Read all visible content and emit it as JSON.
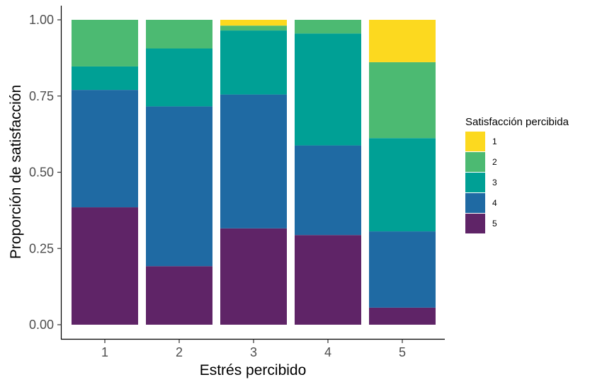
{
  "chart_data": {
    "type": "bar",
    "stacked": true,
    "categories": [
      "1",
      "2",
      "3",
      "4",
      "5"
    ],
    "xlabel": "Estrés percibido",
    "ylabel": "Proporción de satisfacción",
    "ylim": [
      0,
      1
    ],
    "yticks": [
      "0.00",
      "0.25",
      "0.50",
      "0.75",
      "1.00"
    ],
    "grid": false,
    "legend": {
      "title": "Satisfacción percibida",
      "position": "right"
    },
    "series": [
      {
        "name": "5",
        "color": "#5f2467",
        "values": [
          0.385,
          0.192,
          0.316,
          0.294,
          0.056
        ]
      },
      {
        "name": "4",
        "color": "#1f6aa3",
        "values": [
          0.385,
          0.524,
          0.439,
          0.294,
          0.25
        ]
      },
      {
        "name": "3",
        "color": "#00a095",
        "values": [
          0.077,
          0.19,
          0.21,
          0.367,
          0.306
        ]
      },
      {
        "name": "2",
        "color": "#4cba72",
        "values": [
          0.153,
          0.094,
          0.016,
          0.045,
          0.249
        ]
      },
      {
        "name": "1",
        "color": "#fcd91f",
        "values": [
          0,
          0,
          0.019,
          0,
          0.139
        ]
      }
    ],
    "legend_order": [
      "1",
      "2",
      "3",
      "4",
      "5"
    ]
  }
}
